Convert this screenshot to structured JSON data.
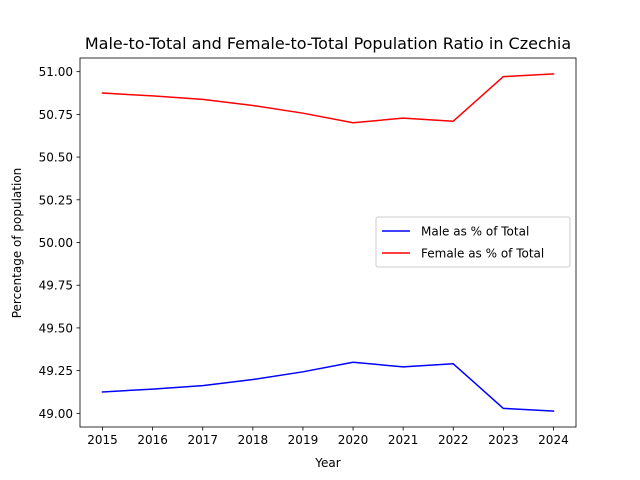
{
  "chart_data": {
    "type": "line",
    "title": "Male-to-Total and Female-to-Total Population Ratio in Czechia",
    "xlabel": "Year",
    "ylabel": "Percentage of population",
    "x": [
      "2015",
      "2016",
      "2017",
      "2018",
      "2019",
      "2020",
      "2021",
      "2022",
      "2023",
      "2024"
    ],
    "xlim": [
      2014.55,
      2024.45
    ],
    "ylim": [
      48.92,
      51.08
    ],
    "yticks": [
      "49.00",
      "49.25",
      "49.50",
      "49.75",
      "50.00",
      "50.25",
      "50.50",
      "50.75",
      "51.00"
    ],
    "grid": false,
    "legend_position": "center-right",
    "series": [
      {
        "name": "Male as % of Total",
        "color": "#0000ff",
        "values": [
          49.125,
          49.142,
          49.162,
          49.198,
          49.243,
          49.299,
          49.272,
          49.29,
          49.029,
          49.013
        ]
      },
      {
        "name": "Female as % of Total",
        "color": "#ff0000",
        "values": [
          50.875,
          50.858,
          50.838,
          50.802,
          50.757,
          50.701,
          50.728,
          50.71,
          50.971,
          50.987
        ]
      }
    ]
  }
}
